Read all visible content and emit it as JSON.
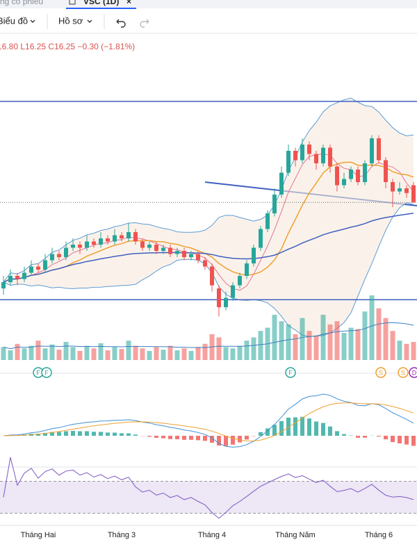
{
  "tabs": {
    "prev": "ng cổ phiếu",
    "active": "VSC (1D)",
    "close": "×"
  },
  "toolbar": {
    "chart": "Biểu đồ",
    "profile": "Hồ sơ"
  },
  "legend": "16.80 L16.25 C16.25 −0.30 (−1.81%)",
  "chart_data": {
    "type": "candlestick",
    "categories": [
      null,
      null,
      null,
      null,
      null,
      "Tháng Hai",
      null,
      null,
      null,
      null,
      null,
      null,
      null,
      null,
      null,
      null,
      null,
      "Tháng 3",
      null,
      null,
      null,
      null,
      null,
      null,
      null,
      null,
      null,
      null,
      null,
      null,
      "Tháng 4",
      null,
      null,
      null,
      null,
      null,
      null,
      null,
      null,
      null,
      null,
      null,
      "Tháng Năm",
      null,
      null,
      null,
      null,
      null,
      null,
      null,
      null,
      null,
      null,
      null,
      "Tháng 6",
      null,
      null,
      null,
      null,
      null
    ],
    "open": [
      13.5,
      13.7,
      13.9,
      13.8,
      14.0,
      14.2,
      14.1,
      14.4,
      14.6,
      14.5,
      14.8,
      14.9,
      14.8,
      15.0,
      14.9,
      15.1,
      15.0,
      15.2,
      15.1,
      15.3,
      15.0,
      14.8,
      14.9,
      14.7,
      14.8,
      14.6,
      14.7,
      14.5,
      14.6,
      14.4,
      14.2,
      13.5,
      12.9,
      13.2,
      13.6,
      13.9,
      14.3,
      14.8,
      15.4,
      15.9,
      16.5,
      17.2,
      17.9,
      17.6,
      18.1,
      17.8,
      17.5,
      18.0,
      17.4,
      16.8,
      17.0,
      17.3,
      16.9,
      17.5,
      18.3,
      17.6,
      16.9,
      16.6,
      16.7,
      16.8
    ],
    "high": [
      13.9,
      14.1,
      14.0,
      14.2,
      14.4,
      14.3,
      14.6,
      14.8,
      14.7,
      15.0,
      15.1,
      15.0,
      15.2,
      15.1,
      15.3,
      15.2,
      15.4,
      15.3,
      15.6,
      15.4,
      15.1,
      15.0,
      15.0,
      14.9,
      14.9,
      14.8,
      14.8,
      14.7,
      14.7,
      14.5,
      14.3,
      13.6,
      13.4,
      13.7,
      14.0,
      14.4,
      14.9,
      15.5,
      16.0,
      16.7,
      17.4,
      18.1,
      18.0,
      18.3,
      18.2,
      17.9,
      18.1,
      18.1,
      17.5,
      17.2,
      17.4,
      17.4,
      17.6,
      18.4,
      18.4,
      17.7,
      17.0,
      16.9,
      16.8,
      16.9
    ],
    "low": [
      13.3,
      13.6,
      13.6,
      13.7,
      13.9,
      14.0,
      14.0,
      14.3,
      14.4,
      14.4,
      14.7,
      14.6,
      14.7,
      14.8,
      14.8,
      14.9,
      14.9,
      15.0,
      15.0,
      14.9,
      14.7,
      14.7,
      14.6,
      14.6,
      14.5,
      14.5,
      14.4,
      14.4,
      14.3,
      14.1,
      13.4,
      12.6,
      12.8,
      13.1,
      13.5,
      13.8,
      14.2,
      14.7,
      15.3,
      15.8,
      16.4,
      17.1,
      17.4,
      17.5,
      17.6,
      17.3,
      17.4,
      17.2,
      16.6,
      16.7,
      16.9,
      16.8,
      16.8,
      17.4,
      17.5,
      16.7,
      16.1,
      16.5,
      16.4,
      16.25
    ],
    "close": [
      13.7,
      13.9,
      13.8,
      14.0,
      14.2,
      14.1,
      14.4,
      14.6,
      14.5,
      14.8,
      14.9,
      14.8,
      15.0,
      14.9,
      15.1,
      15.0,
      15.2,
      15.1,
      15.3,
      15.0,
      14.8,
      14.9,
      14.7,
      14.8,
      14.6,
      14.7,
      14.5,
      14.6,
      14.4,
      14.2,
      13.6,
      12.9,
      13.2,
      13.6,
      13.9,
      14.3,
      14.8,
      15.4,
      15.9,
      16.5,
      17.2,
      17.9,
      17.6,
      18.1,
      17.8,
      17.5,
      18.0,
      17.4,
      16.8,
      17.0,
      17.3,
      16.9,
      17.5,
      18.3,
      17.6,
      16.9,
      16.6,
      16.7,
      16.55,
      16.25
    ],
    "volume": [
      20,
      15,
      25,
      18,
      22,
      30,
      18,
      24,
      16,
      28,
      20,
      14,
      22,
      18,
      26,
      15,
      20,
      17,
      30,
      22,
      18,
      14,
      20,
      16,
      22,
      15,
      18,
      14,
      20,
      25,
      40,
      35,
      20,
      18,
      22,
      30,
      35,
      45,
      50,
      70,
      60,
      55,
      40,
      65,
      45,
      38,
      70,
      55,
      60,
      42,
      50,
      48,
      75,
      100,
      80,
      65,
      45,
      30,
      25,
      28
    ],
    "ylim": [
      12.5,
      20.5
    ],
    "vlim": [
      0,
      100
    ],
    "rsilim": [
      0,
      100
    ],
    "rsi_band": [
      30,
      70
    ],
    "hlines": [
      19.48,
      13.14
    ],
    "events": [
      "F",
      "F",
      "F",
      "S",
      "S",
      "D"
    ],
    "up_color": "#26a69a",
    "down_color": "#ef5350"
  }
}
